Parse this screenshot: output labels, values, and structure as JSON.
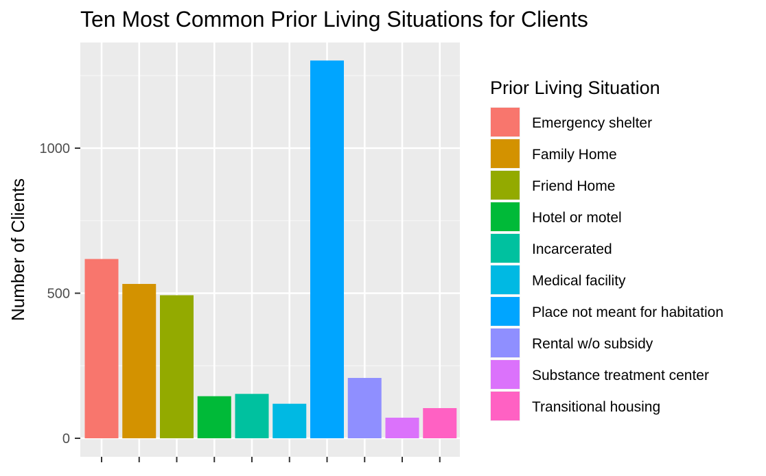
{
  "chart_data": {
    "type": "bar",
    "title": "Ten Most Common Prior Living Situations for Clients",
    "xlabel": "",
    "ylabel": "Number of Clients",
    "ylim": [
      0,
      1310
    ],
    "yticks": [
      0,
      500,
      1000
    ],
    "grid": true,
    "legend": {
      "title": "Prior Living Situation",
      "position": "right"
    },
    "categories": [
      "Emergency shelter",
      "Family Home",
      "Friend Home",
      "Hotel or motel",
      "Incarcerated",
      "Medical facility",
      "Place not meant for habitation",
      "Rental w/o subsidy",
      "Substance treatment center",
      "Transitional housing"
    ],
    "values": [
      618,
      532,
      493,
      145,
      153,
      119,
      1302,
      208,
      71,
      104
    ],
    "colors": [
      "#F8766D",
      "#D39200",
      "#93AA00",
      "#00BA38",
      "#00C19F",
      "#00B9E3",
      "#00A5FF",
      "#8F8FFF",
      "#DB72FB",
      "#FF61C3"
    ]
  }
}
